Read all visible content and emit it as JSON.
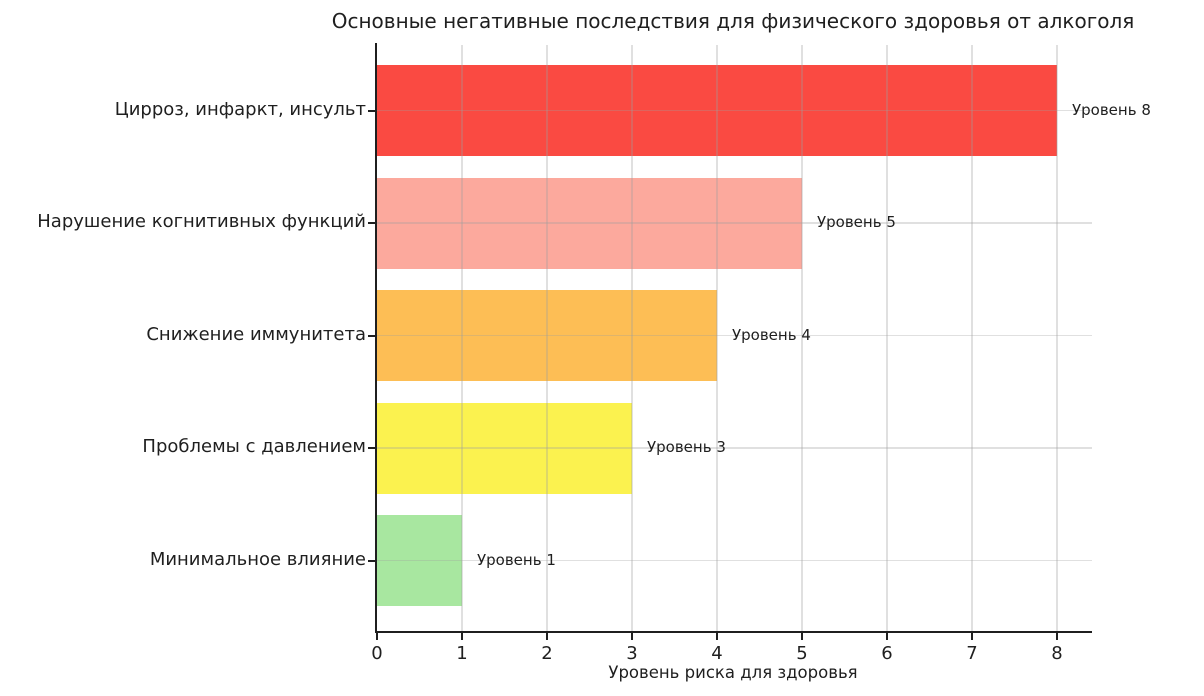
{
  "chart_data": {
    "type": "bar",
    "orientation": "horizontal",
    "title": "Основные негативные последствия для физического здоровья от алкоголя",
    "xlabel": "Уровень риска для здоровья",
    "ylabel": "",
    "categories": [
      "Цирроз, инфаркт, инсульт",
      "Нарушение когнитивных функций",
      "Снижение иммунитета",
      "Проблемы с давлением",
      "Минимальное влияние"
    ],
    "values": [
      8,
      5,
      4,
      3,
      1
    ],
    "bar_labels": [
      "Уровень 8",
      "Уровень 5",
      "Уровень 4",
      "Уровень 3",
      "Уровень 1"
    ],
    "bar_colors": [
      "#FA4A42",
      "#FCA99D",
      "#FDBE55",
      "#FBF24F",
      "#A8E7A0"
    ],
    "xticks": [
      0,
      1,
      2,
      3,
      4,
      5,
      6,
      7,
      8
    ],
    "xlim": [
      0,
      8.4
    ],
    "grid": true,
    "grid_over_bars": true,
    "legend": null,
    "text_color": "#1f1f1f",
    "background_color": "#ffffff"
  }
}
